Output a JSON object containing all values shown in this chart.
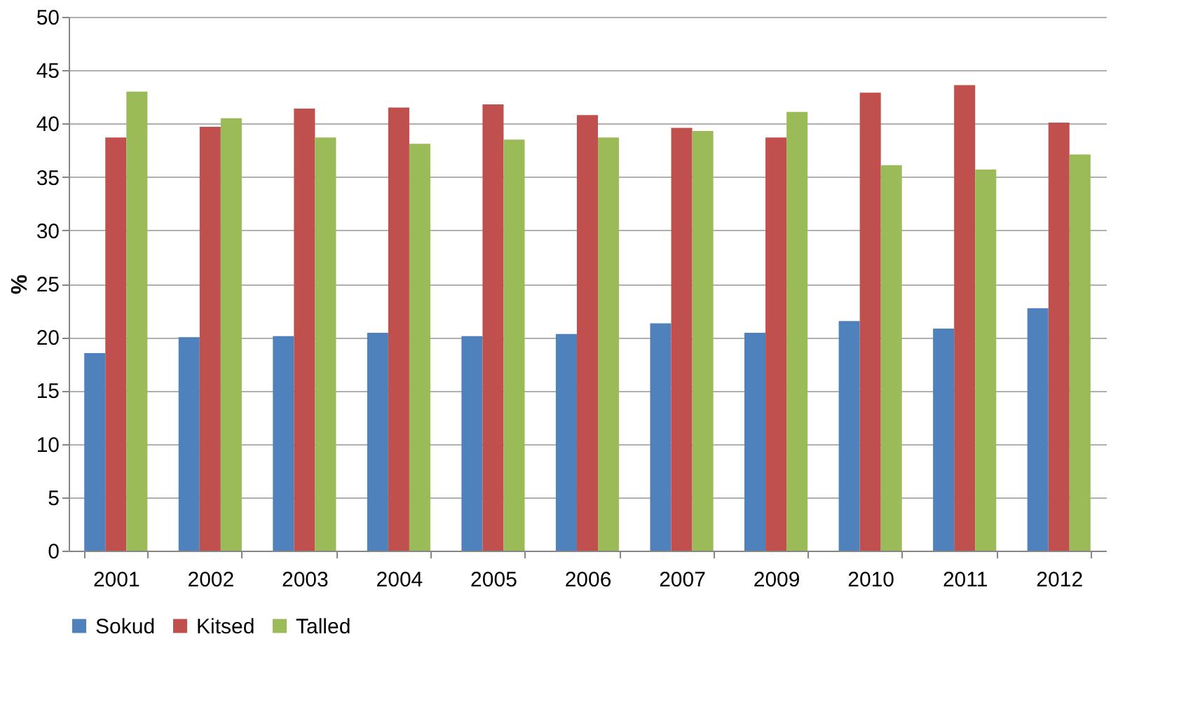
{
  "chart_data": {
    "type": "bar",
    "ylabel": "%",
    "categories": [
      "2001",
      "2002",
      "2003",
      "2004",
      "2005",
      "2006",
      "2007",
      "2009",
      "2010",
      "2011",
      "2012"
    ],
    "series": [
      {
        "name": "Sokud",
        "color": "#4f81bd",
        "values": [
          18.5,
          20.0,
          20.1,
          20.4,
          20.1,
          20.3,
          21.3,
          20.4,
          21.5,
          20.8,
          22.7
        ]
      },
      {
        "name": "Kitsed",
        "color": "#c0504d",
        "values": [
          38.7,
          39.7,
          41.4,
          41.5,
          41.8,
          40.8,
          39.6,
          38.7,
          42.9,
          43.6,
          40.1
        ]
      },
      {
        "name": "Talled",
        "color": "#9bbb59",
        "values": [
          43.0,
          40.5,
          38.7,
          38.1,
          38.5,
          38.7,
          39.3,
          41.1,
          36.1,
          35.7,
          37.1
        ]
      }
    ],
    "ylim": [
      0,
      50
    ],
    "yticks": [
      0,
      5,
      10,
      15,
      20,
      25,
      30,
      35,
      40,
      45,
      50
    ],
    "grid": "y",
    "legend": "bottom"
  }
}
